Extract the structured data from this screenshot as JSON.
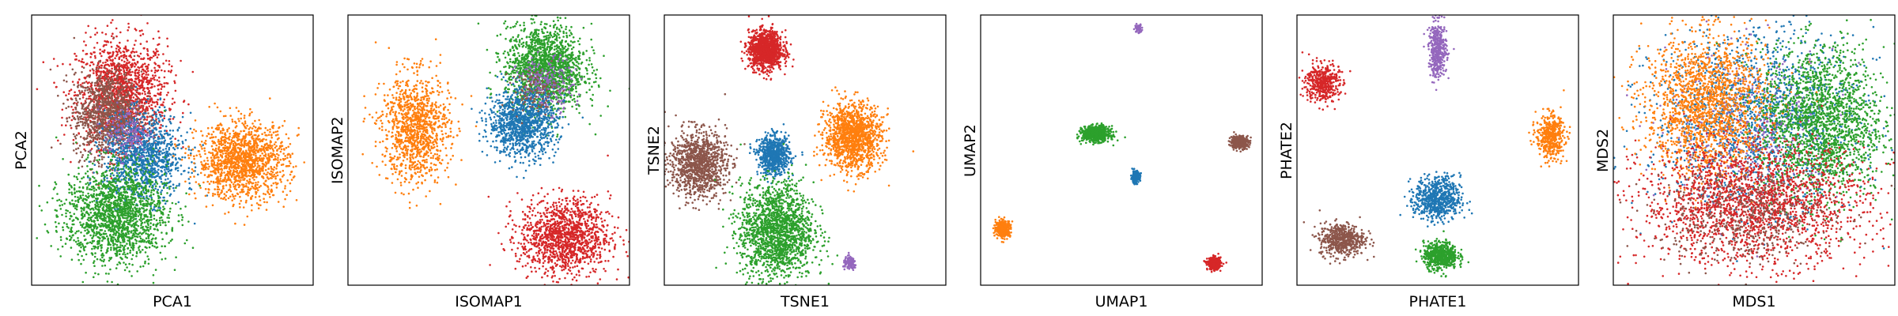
{
  "colors": {
    "blue": "#1f77b4",
    "orange": "#ff7f0e",
    "green": "#2ca02c",
    "red": "#d62728",
    "purple": "#9467bd",
    "brown": "#8c564b"
  },
  "chart_data": [
    {
      "type": "scatter",
      "xlabel": "PCA1",
      "ylabel": "PCA2",
      "ticks": "none",
      "grid": false,
      "xlim": [
        0,
        100
      ],
      "ylim": [
        0,
        100
      ],
      "clusters": [
        {
          "color": "red",
          "cx": 32,
          "cy": 71,
          "sx": 8,
          "sy": 10,
          "n": 1500
        },
        {
          "color": "brown",
          "cx": 27,
          "cy": 63,
          "sx": 6,
          "sy": 8,
          "n": 1100
        },
        {
          "color": "blue",
          "cx": 40,
          "cy": 47,
          "sx": 7,
          "sy": 8,
          "n": 1100
        },
        {
          "color": "orange",
          "cx": 75,
          "cy": 46,
          "sx": 8,
          "sy": 7,
          "n": 1400
        },
        {
          "color": "green",
          "cx": 30,
          "cy": 26,
          "sx": 9,
          "sy": 9,
          "n": 1700
        },
        {
          "color": "purple",
          "cx": 34,
          "cy": 57,
          "sx": 4,
          "sy": 5,
          "n": 150
        }
      ]
    },
    {
      "type": "scatter",
      "xlabel": "ISOMAP1",
      "ylabel": "ISOMAP2",
      "ticks": "none",
      "grid": false,
      "xlim": [
        0,
        100
      ],
      "ylim": [
        0,
        100
      ],
      "clusters": [
        {
          "color": "green",
          "cx": 70,
          "cy": 80,
          "sx": 7,
          "sy": 8,
          "n": 1700
        },
        {
          "color": "purple",
          "cx": 70,
          "cy": 74,
          "sx": 5,
          "sy": 5,
          "n": 250
        },
        {
          "color": "blue",
          "cx": 62,
          "cy": 60,
          "sx": 6,
          "sy": 6,
          "n": 1100
        },
        {
          "color": "orange",
          "cx": 24,
          "cy": 58,
          "sx": 6,
          "sy": 10,
          "n": 1100
        },
        {
          "color": "red",
          "cx": 77,
          "cy": 18,
          "sx": 8,
          "sy": 7,
          "n": 1300
        },
        {
          "color": "brown",
          "cx": 66,
          "cy": 72,
          "sx": 4,
          "sy": 4,
          "n": 100
        }
      ]
    },
    {
      "type": "scatter",
      "xlabel": "TSNE1",
      "ylabel": "TSNE2",
      "ticks": "none",
      "grid": false,
      "xlim": [
        0,
        100
      ],
      "ylim": [
        0,
        100
      ],
      "clusters": [
        {
          "color": "red",
          "cx": 36,
          "cy": 87,
          "sx": 3,
          "sy": 3.5,
          "n": 1200
        },
        {
          "color": "orange",
          "cx": 67,
          "cy": 55,
          "sx": 5,
          "sy": 6,
          "n": 1300
        },
        {
          "color": "blue",
          "cx": 39,
          "cy": 48,
          "sx": 2.8,
          "sy": 3.5,
          "n": 700
        },
        {
          "color": "brown",
          "cx": 12,
          "cy": 45,
          "sx": 5,
          "sy": 6,
          "n": 1100
        },
        {
          "color": "green",
          "cx": 40,
          "cy": 20,
          "sx": 6.5,
          "sy": 9,
          "n": 1700
        },
        {
          "color": "purple",
          "cx": 66,
          "cy": 8,
          "sx": 1.2,
          "sy": 1.2,
          "n": 120
        }
      ]
    },
    {
      "type": "scatter",
      "xlabel": "UMAP1",
      "ylabel": "UMAP2",
      "ticks": "none",
      "grid": false,
      "xlim": [
        0,
        100
      ],
      "ylim": [
        0,
        100
      ],
      "clusters": [
        {
          "color": "purple",
          "cx": 56,
          "cy": 95,
          "sx": 0.6,
          "sy": 0.8,
          "n": 60
        },
        {
          "color": "green",
          "cx": 41,
          "cy": 56,
          "sx": 2.4,
          "sy": 1.4,
          "n": 700
        },
        {
          "color": "brown",
          "cx": 92,
          "cy": 53,
          "sx": 1.6,
          "sy": 1.2,
          "n": 350
        },
        {
          "color": "blue",
          "cx": 55,
          "cy": 40,
          "sx": 0.8,
          "sy": 1.1,
          "n": 150
        },
        {
          "color": "orange",
          "cx": 8,
          "cy": 21,
          "sx": 1.3,
          "sy": 1.5,
          "n": 350
        },
        {
          "color": "red",
          "cx": 83,
          "cy": 8,
          "sx": 1.2,
          "sy": 1.1,
          "n": 350
        }
      ]
    },
    {
      "type": "scatter",
      "xlabel": "PHATE1",
      "ylabel": "PHATE2",
      "ticks": "none",
      "grid": false,
      "xlim": [
        0,
        100
      ],
      "ylim": [
        0,
        100
      ],
      "clusters": [
        {
          "color": "purple",
          "cx": 50,
          "cy": 87,
          "sx": 1.6,
          "sy": 5,
          "n": 400
        },
        {
          "color": "red",
          "cx": 9,
          "cy": 75,
          "sx": 3,
          "sy": 3.5,
          "n": 450
        },
        {
          "color": "orange",
          "cx": 90,
          "cy": 55,
          "sx": 2.5,
          "sy": 4,
          "n": 450
        },
        {
          "color": "blue",
          "cx": 50,
          "cy": 32,
          "sx": 4,
          "sy": 4,
          "n": 700
        },
        {
          "color": "brown",
          "cx": 16,
          "cy": 17,
          "sx": 4,
          "sy": 3,
          "n": 550
        },
        {
          "color": "green",
          "cx": 51,
          "cy": 11,
          "sx": 3,
          "sy": 2.5,
          "n": 600
        }
      ]
    },
    {
      "type": "scatter",
      "xlabel": "MDS1",
      "ylabel": "MDS2",
      "ticks": "none",
      "grid": false,
      "xlim": [
        0,
        100
      ],
      "ylim": [
        0,
        100
      ],
      "clusters": [
        {
          "color": "blue",
          "cx": 50,
          "cy": 62,
          "sx": 18,
          "sy": 16,
          "n": 1500
        },
        {
          "color": "purple",
          "cx": 50,
          "cy": 58,
          "sx": 15,
          "sy": 14,
          "n": 400
        },
        {
          "color": "orange",
          "cx": 33,
          "cy": 67,
          "sx": 11,
          "sy": 13,
          "n": 1700
        },
        {
          "color": "green",
          "cx": 74,
          "cy": 60,
          "sx": 11,
          "sy": 14,
          "n": 1900
        },
        {
          "color": "red",
          "cx": 50,
          "cy": 30,
          "sx": 20,
          "sy": 11,
          "n": 2000
        },
        {
          "color": "brown",
          "cx": 46,
          "cy": 26,
          "sx": 16,
          "sy": 9,
          "n": 500
        }
      ]
    }
  ]
}
